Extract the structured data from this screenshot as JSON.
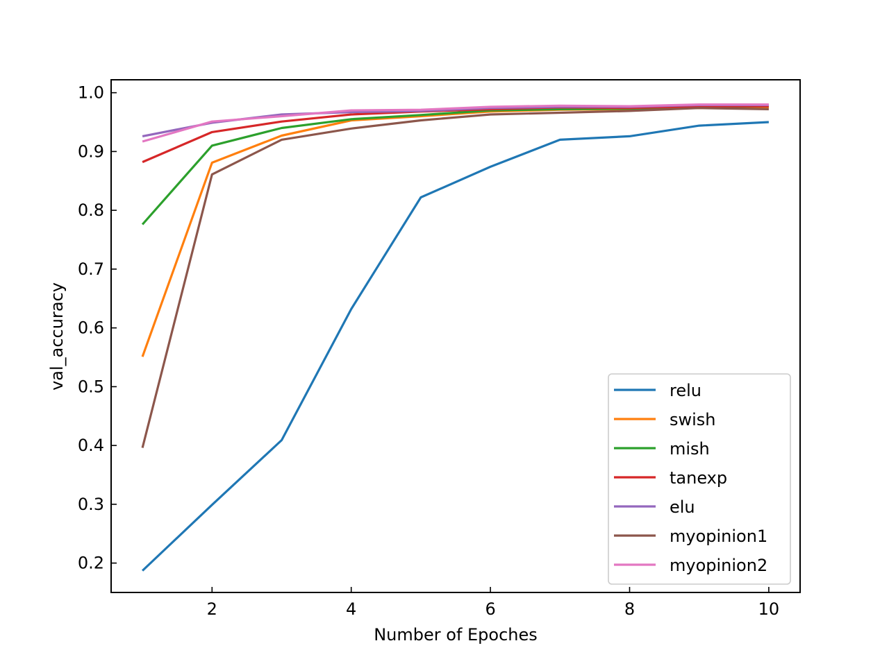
{
  "chart_data": {
    "type": "line",
    "title": "",
    "xlabel": "Number of Epoches",
    "ylabel": "val_accuracy",
    "x": [
      1,
      2,
      3,
      4,
      5,
      6,
      7,
      8,
      9,
      10
    ],
    "xlim": [
      0.55,
      10.45
    ],
    "ylim": [
      0.15,
      1.022
    ],
    "xticks": [
      2,
      4,
      6,
      8,
      10
    ],
    "xtick_labels": [
      "2",
      "4",
      "6",
      "8",
      "10"
    ],
    "yticks": [
      0.2,
      0.3,
      0.4,
      0.5,
      0.6,
      0.7,
      0.8,
      0.9,
      1.0
    ],
    "ytick_labels": [
      "0.2",
      "0.3",
      "0.4",
      "0.5",
      "0.6",
      "0.7",
      "0.8",
      "0.9",
      "1.0"
    ],
    "grid": false,
    "legend_position": "lower-right",
    "series": [
      {
        "name": "relu",
        "color": "#1f77b4",
        "values": [
          0.187,
          0.299,
          0.409,
          0.632,
          0.822,
          0.874,
          0.92,
          0.926,
          0.944,
          0.95
        ]
      },
      {
        "name": "swish",
        "color": "#ff7f0e",
        "values": [
          0.551,
          0.881,
          0.927,
          0.953,
          0.96,
          0.968,
          0.971,
          0.972,
          0.974,
          0.975
        ]
      },
      {
        "name": "mish",
        "color": "#2ca02c",
        "values": [
          0.776,
          0.91,
          0.94,
          0.955,
          0.962,
          0.97,
          0.972,
          0.973,
          0.976,
          0.977
        ]
      },
      {
        "name": "tanexp",
        "color": "#d62728",
        "values": [
          0.882,
          0.933,
          0.951,
          0.963,
          0.968,
          0.972,
          0.975,
          0.974,
          0.977,
          0.977
        ]
      },
      {
        "name": "elu",
        "color": "#9467bd",
        "values": [
          0.926,
          0.949,
          0.963,
          0.967,
          0.969,
          0.974,
          0.976,
          0.976,
          0.979,
          0.979
        ]
      },
      {
        "name": "myopinion1",
        "color": "#8c564b",
        "values": [
          0.396,
          0.861,
          0.92,
          0.939,
          0.953,
          0.963,
          0.966,
          0.969,
          0.974,
          0.972
        ]
      },
      {
        "name": "myopinion2",
        "color": "#e377c2",
        "values": [
          0.917,
          0.951,
          0.96,
          0.97,
          0.971,
          0.976,
          0.978,
          0.977,
          0.98,
          0.98
        ]
      }
    ]
  }
}
